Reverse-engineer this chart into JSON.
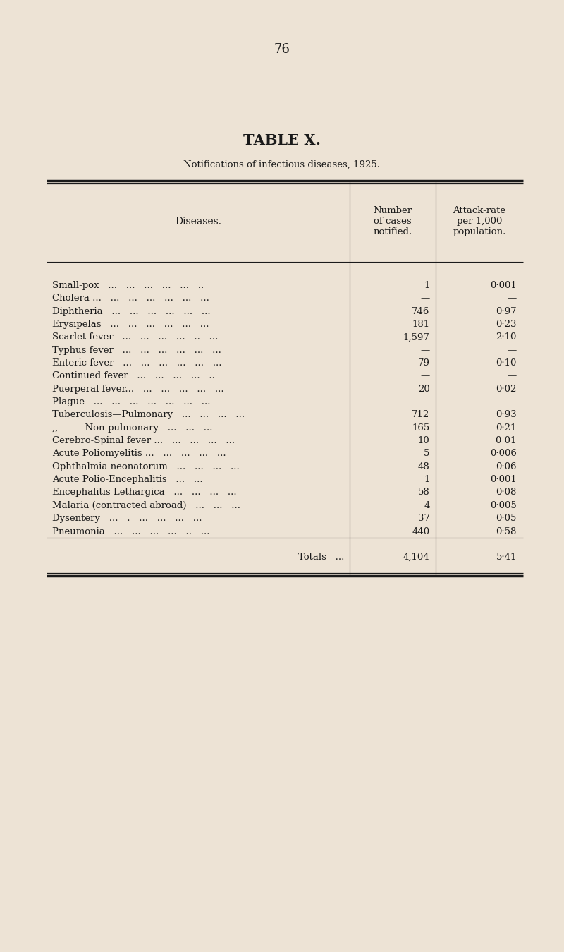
{
  "page_number": "76",
  "title": "TABLE X.",
  "subtitle": "Notifications of infectious diseases, 1925.",
  "col_headers": [
    "Diseases.",
    "Number\nof cases\nnotified.",
    "Attack-rate\nper 1,000\npopulation."
  ],
  "rows": [
    [
      "Small-pox   ...   ...   ...   ...   ...   ..",
      "1",
      "0·001"
    ],
    [
      "Cholera ...   ...   ...   ...   ...   ...   ...",
      "—",
      "—"
    ],
    [
      "Diphtheria   ...   ...   ...   ...   ...   ...",
      "746",
      "0·97"
    ],
    [
      "Erysipelas   ...   ...   ...   ...   ...   ...",
      "181",
      "0·23"
    ],
    [
      "Scarlet fever   ...   ...   ...   ...   ..   ...",
      "1,597",
      "2·10"
    ],
    [
      "Typhus fever   ...   ...   ...   ...   ...   ...",
      "—",
      "—"
    ],
    [
      "Enteric fever   ...   ...   ...   ...   ...   ...",
      "79",
      "0·10"
    ],
    [
      "Continued fever   ...   ...   ...   ...   ..",
      "—",
      "—"
    ],
    [
      "Puerperal fever...   ...   ...   ...   ...   ...",
      "20",
      "0·02"
    ],
    [
      "Plague   ...   ...   ...   ...   ...   ...   ...",
      "—",
      "—"
    ],
    [
      "Tuberculosis—Pulmonary   ...   ...   ...   ...",
      "712",
      "0·93"
    ],
    [
      ",,         Non-pulmonary   ...   ...   ...",
      "165",
      "0·21"
    ],
    [
      "Cerebro-Spinal fever ...   ...   ...   ...   ...",
      "10",
      "0 01"
    ],
    [
      "Acute Poliomyelitis ...   ...   ...   ...   ...",
      "5",
      "0·006"
    ],
    [
      "Ophthalmia neonatorum   ...   ...   ...   ...",
      "48",
      "0·06"
    ],
    [
      "Acute Polio-Encephalitis   ...   ...",
      "1",
      "0·001"
    ],
    [
      "Encephalitis Lethargica   ...   ...   ...   ...",
      "58",
      "0·08"
    ],
    [
      "Malaria (contracted abroad)   ...   ...   ...",
      "4",
      "0·005"
    ],
    [
      "Dysentery   ...   .   ...   ...   ...   ...",
      "37",
      "0·05"
    ],
    [
      "Pneumonia   ...   ...   ...   ...   ..   ...",
      "440",
      "0·58"
    ]
  ],
  "totals_label": "Totals   ...",
  "totals_cases": "4,104",
  "totals_rate": "5·41",
  "bg_color": "#ede3d5",
  "text_color": "#1a1a1a",
  "table_line_color": "#1a1a1a"
}
